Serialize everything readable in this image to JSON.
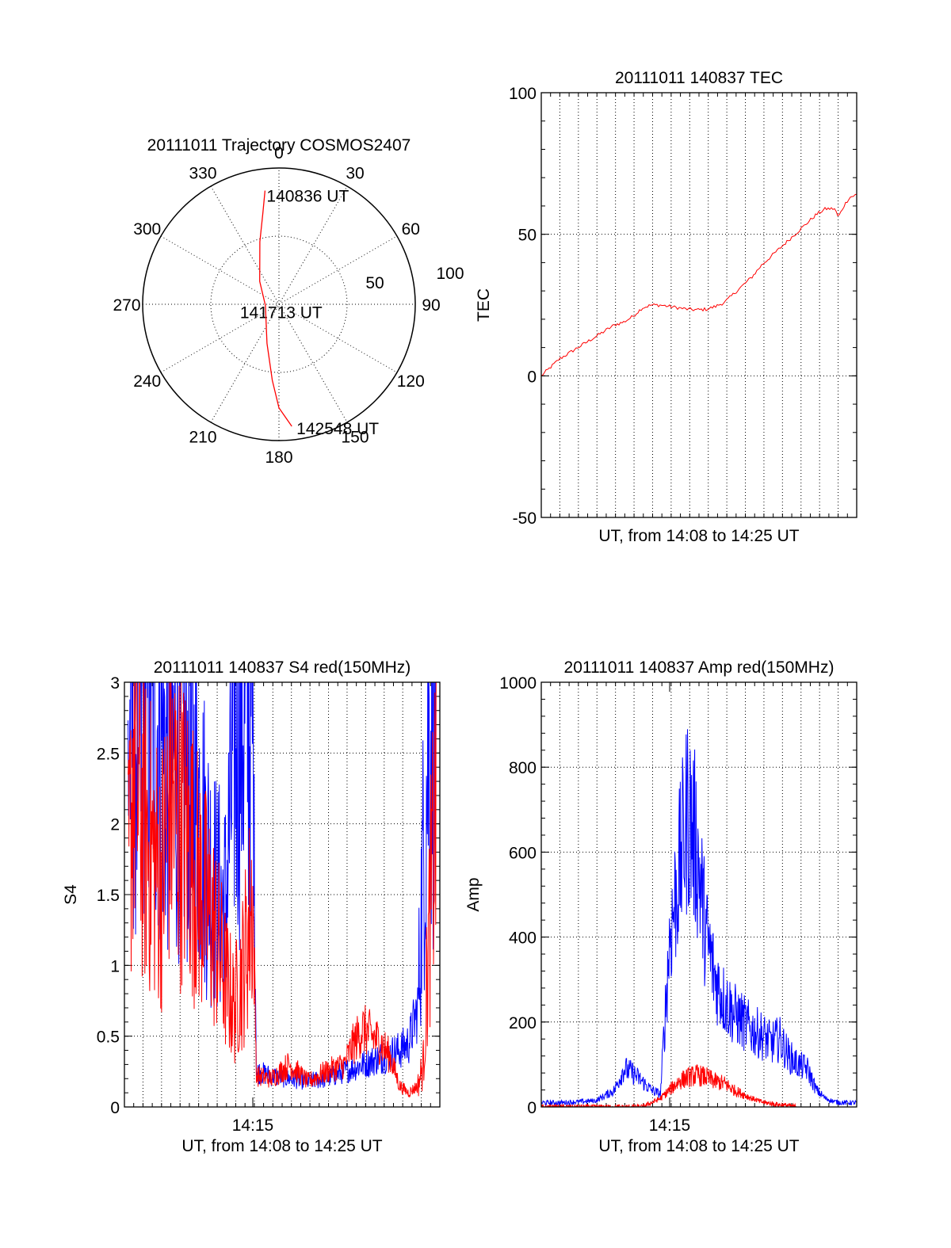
{
  "colors": {
    "red": "#ff0000",
    "blue": "#0000ff",
    "axis": "#000000",
    "grid": "#000000",
    "background": "#ffffff"
  },
  "chart_data": [
    {
      "id": "trajectory",
      "type": "polar",
      "title": "20111011 Trajectory COSMOS2407",
      "angle_labels": [
        "0",
        "30",
        "60",
        "90",
        "120",
        "150",
        "180",
        "210",
        "240",
        "270",
        "300",
        "330"
      ],
      "radial_labels": [
        "50",
        "100"
      ],
      "radial_range": [
        0,
        100
      ],
      "grid": true,
      "annotations": [
        "140836 UT",
        "141713 UT",
        "142548 UT"
      ],
      "series": [
        {
          "color": "red",
          "points": [
            {
              "az": 353,
              "r": 84,
              "label": "140836 UT"
            },
            {
              "az": 350,
              "r": 68
            },
            {
              "az": 343,
              "r": 48
            },
            {
              "az": 320,
              "r": 22
            },
            {
              "az": 265,
              "r": 10,
              "label": "141713 UT"
            },
            {
              "az": 197,
              "r": 30
            },
            {
              "az": 185,
              "r": 56
            },
            {
              "az": 180,
              "r": 76
            },
            {
              "az": 174,
              "r": 90,
              "label": "142548 UT"
            }
          ]
        }
      ]
    },
    {
      "id": "tec",
      "type": "line",
      "title": "20111011 140837 TEC",
      "xlabel": "UT, from 14:08 to 14:25 UT",
      "ylabel": "TEC",
      "xlim": [
        0,
        17.2
      ],
      "ylim": [
        -50,
        100
      ],
      "yticks": [
        "-50",
        "0",
        "50",
        "100"
      ],
      "grid": true,
      "series": [
        {
          "color": "red",
          "x": [
            0,
            0.5,
            1,
            1.5,
            2,
            2.5,
            3,
            3.5,
            4,
            4.5,
            5,
            5.5,
            6,
            6.5,
            7,
            7.5,
            8,
            8.5,
            9,
            9.5,
            10,
            10.5,
            11,
            11.5,
            12,
            12.5,
            13,
            13.5,
            14,
            14.5,
            15,
            15.5,
            16,
            16.2,
            16.5,
            16.8,
            17.2
          ],
          "y": [
            0,
            3,
            6,
            8,
            10,
            12,
            14,
            16,
            18,
            19,
            21,
            24,
            25,
            25,
            24.5,
            24,
            23.5,
            23.3,
            23.5,
            24.5,
            26,
            29,
            32,
            35,
            39,
            42,
            45,
            48,
            51,
            54,
            57,
            59,
            59,
            56,
            60,
            63,
            64
          ]
        }
      ]
    },
    {
      "id": "s4",
      "type": "line",
      "title": "20111011 140837 S4 red(150MHz)",
      "xlabel": "UT, from 14:08 to 14:25 UT",
      "ylabel": "S4",
      "xlim": [
        0,
        17.2
      ],
      "ylim": [
        0,
        3
      ],
      "yticks": [
        "0",
        "0.5",
        "1",
        "1.5",
        "2",
        "2.5",
        "3"
      ],
      "xtick_labels": [
        "14:15"
      ],
      "xtick_values": [
        7
      ],
      "grid": true,
      "series": [
        {
          "color": "blue",
          "x": [
            0.2,
            0.5,
            1,
            1.5,
            2,
            2.5,
            3,
            3.5,
            4,
            4.5,
            5,
            5.5,
            6,
            6.5,
            7,
            7.2,
            8,
            9,
            10,
            11,
            12,
            13,
            14,
            15,
            15.5,
            16,
            16.3,
            16.6,
            17
          ],
          "y": [
            2.5,
            2.8,
            2.7,
            2.9,
            2.6,
            2.4,
            2.5,
            2.3,
            2.2,
            1.8,
            1.5,
            1.4,
            2.6,
            2.8,
            2.7,
            0.25,
            0.22,
            0.2,
            0.18,
            0.2,
            0.25,
            0.3,
            0.35,
            0.4,
            0.45,
            0.7,
            1.8,
            2.6,
            2.7
          ]
        },
        {
          "color": "red",
          "x": [
            0.2,
            0.5,
            1,
            1.5,
            2,
            2.5,
            3,
            3.5,
            4,
            4.5,
            5,
            5.5,
            6,
            6.5,
            7,
            7.2,
            8,
            9,
            10,
            11,
            12,
            12.5,
            13,
            13.5,
            14,
            14.5,
            15,
            15.5,
            16,
            16.3,
            16.6,
            17
          ],
          "y": [
            1.5,
            2.5,
            2.0,
            1.8,
            1.6,
            2.2,
            2.0,
            1.9,
            1.6,
            1.4,
            1.2,
            0.9,
            0.7,
            1.0,
            1.5,
            0.22,
            0.2,
            0.3,
            0.18,
            0.25,
            0.3,
            0.45,
            0.55,
            0.5,
            0.45,
            0.35,
            0.15,
            0.1,
            0.15,
            0.3,
            1.2,
            2.2
          ]
        }
      ]
    },
    {
      "id": "amp",
      "type": "line",
      "title": "20111011 140837 Amp red(150MHz)",
      "xlabel": "UT, from 14:08 to 14:25 UT",
      "ylabel": "Amp",
      "xlim": [
        0,
        17.2
      ],
      "ylim": [
        0,
        1000
      ],
      "yticks": [
        "0",
        "200",
        "400",
        "600",
        "800",
        "1000"
      ],
      "xtick_labels": [
        "14:15"
      ],
      "xtick_values": [
        7
      ],
      "grid": true,
      "series": [
        {
          "color": "blue",
          "x": [
            0,
            1,
            2,
            3,
            4,
            4.5,
            5,
            5.5,
            6,
            6.5,
            7,
            7.5,
            8,
            8.5,
            9,
            9.5,
            10,
            10.5,
            11,
            11.5,
            12,
            12.5,
            13,
            13.5,
            14,
            14.5,
            15,
            15.5,
            16,
            16.5,
            17.2
          ],
          "y": [
            10,
            10,
            12,
            15,
            40,
            90,
            80,
            60,
            40,
            30,
            400,
            550,
            700,
            600,
            400,
            300,
            250,
            220,
            200,
            180,
            170,
            150,
            160,
            120,
            100,
            90,
            40,
            20,
            12,
            10,
            10
          ]
        },
        {
          "color": "red",
          "x": [
            0,
            5.5,
            6,
            6.5,
            7,
            7.5,
            8,
            8.5,
            9,
            9.5,
            10,
            10.5,
            11,
            11.5,
            12,
            12.5,
            13,
            13.5,
            14
          ],
          "y": [
            0,
            0,
            10,
            20,
            40,
            60,
            70,
            75,
            70,
            60,
            55,
            40,
            30,
            20,
            12,
            8,
            5,
            3,
            0
          ]
        }
      ]
    }
  ]
}
